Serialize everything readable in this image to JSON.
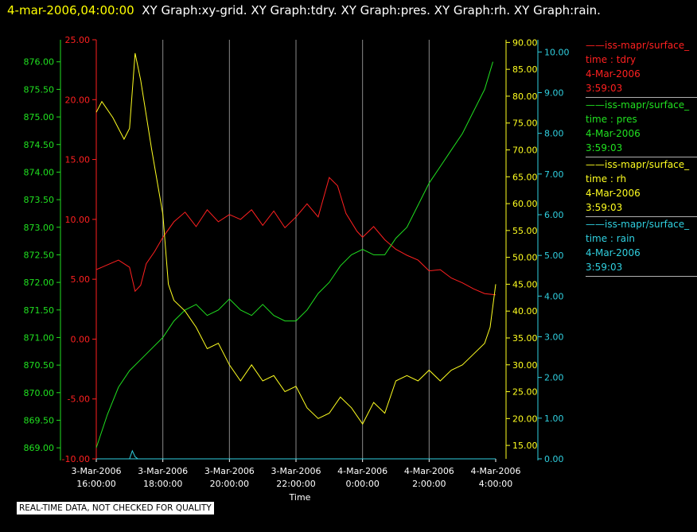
{
  "header": {
    "timestamp": "4-mar-2006,04:00:00",
    "graphs": "XY Graph:xy-grid.  XY Graph:tdry.  XY Graph:pres.  XY Graph:rh.  XY Graph:rain."
  },
  "legend": [
    {
      "series": "iss-mapr/surface_",
      "field": "time : tdry",
      "date": "4-Mar-2006",
      "time": "3:59:03",
      "color": "#ff2020"
    },
    {
      "series": "iss-mapr/surface_",
      "field": "time : pres",
      "date": "4-Mar-2006",
      "time": "3:59:03",
      "color": "#20e020"
    },
    {
      "series": "iss-mapr/surface_",
      "field": "time : rh",
      "date": "4-Mar-2006",
      "time": "3:59:03",
      "color": "#ffff20"
    },
    {
      "series": "iss-mapr/surface_",
      "field": "time : rain",
      "date": "4-Mar-2006",
      "time": "3:59:03",
      "color": "#30d0e0"
    }
  ],
  "footer": "REAL-TIME DATA, NOT CHECKED FOR QUALITY",
  "chart_data": {
    "type": "line",
    "xlabel": "Time",
    "x_ticks": [
      {
        "date": "3-Mar-2006",
        "time": "16:00:00"
      },
      {
        "date": "3-Mar-2006",
        "time": "18:00:00"
      },
      {
        "date": "3-Mar-2006",
        "time": "20:00:00"
      },
      {
        "date": "3-Mar-2006",
        "time": "22:00:00"
      },
      {
        "date": "4-Mar-2006",
        "time": "0:00:00"
      },
      {
        "date": "4-Mar-2006",
        "time": "2:00:00"
      },
      {
        "date": "4-Mar-2006",
        "time": "4:00:00"
      }
    ],
    "xlim": [
      "3-Mar-2006 16:00:00",
      "4-Mar-2006 4:00:00"
    ],
    "grid": "vertical",
    "axes": [
      {
        "id": "pres",
        "side": "left",
        "color": "#20e020",
        "ylim": [
          868.8,
          876.4
        ],
        "ticks": [
          "869.00",
          "869.50",
          "870.00",
          "870.50",
          "871.00",
          "871.50",
          "872.00",
          "872.50",
          "873.00",
          "873.50",
          "874.00",
          "874.50",
          "875.00",
          "875.50",
          "876.00"
        ]
      },
      {
        "id": "tdry",
        "side": "left",
        "color": "#ff2020",
        "ylim": [
          -10,
          25
        ],
        "ticks": [
          "-10.00",
          "-5.00",
          "0.00",
          "5.00",
          "10.00",
          "15.00",
          "20.00",
          "25.00"
        ]
      },
      {
        "id": "rh",
        "side": "right",
        "color": "#ffff20",
        "ylim": [
          12.5,
          90.5
        ],
        "ticks": [
          "15.00",
          "20.00",
          "25.00",
          "30.00",
          "35.00",
          "40.00",
          "45.00",
          "50.00",
          "55.00",
          "60.00",
          "65.00",
          "70.00",
          "75.00",
          "80.00",
          "85.00",
          "90.00"
        ]
      },
      {
        "id": "rain",
        "side": "right",
        "color": "#30d0e0",
        "ylim": [
          0,
          10.3
        ],
        "ticks": [
          "0.00",
          "1.00",
          "2.00",
          "3.00",
          "4.00",
          "5.00",
          "6.00",
          "7.00",
          "8.00",
          "9.00",
          "10.00"
        ]
      }
    ],
    "series": [
      {
        "name": "time : tdry",
        "axis": "tdry",
        "color": "#ff2020",
        "x": [
          "3-Mar-2006 16:00",
          "3-Mar-2006 16:20",
          "3-Mar-2006 16:40",
          "3-Mar-2006 17:00",
          "3-Mar-2006 17:10",
          "3-Mar-2006 17:20",
          "3-Mar-2006 17:30",
          "3-Mar-2006 17:45",
          "3-Mar-2006 18:00",
          "3-Mar-2006 18:20",
          "3-Mar-2006 18:40",
          "3-Mar-2006 19:00",
          "3-Mar-2006 19:20",
          "3-Mar-2006 19:40",
          "3-Mar-2006 20:00",
          "3-Mar-2006 20:20",
          "3-Mar-2006 20:40",
          "3-Mar-2006 21:00",
          "3-Mar-2006 21:20",
          "3-Mar-2006 21:40",
          "3-Mar-2006 22:00",
          "3-Mar-2006 22:20",
          "3-Mar-2006 22:40",
          "3-Mar-2006 23:00",
          "3-Mar-2006 23:15",
          "3-Mar-2006 23:30",
          "3-Mar-2006 23:50",
          "4-Mar-2006 0:00",
          "4-Mar-2006 0:20",
          "4-Mar-2006 0:40",
          "4-Mar-2006 1:00",
          "4-Mar-2006 1:20",
          "4-Mar-2006 1:40",
          "4-Mar-2006 2:00",
          "4-Mar-2006 2:20",
          "4-Mar-2006 2:40",
          "4-Mar-2006 3:00",
          "4-Mar-2006 3:20",
          "4-Mar-2006 3:40",
          "4-Mar-2006 4:00"
        ],
        "values": [
          5.8,
          6.2,
          6.6,
          6.0,
          4.0,
          4.5,
          6.3,
          7.3,
          8.5,
          9.8,
          10.6,
          9.4,
          10.8,
          9.8,
          10.4,
          10.0,
          10.8,
          9.5,
          10.7,
          9.3,
          10.2,
          11.3,
          10.2,
          13.5,
          12.8,
          10.5,
          9.0,
          8.5,
          9.4,
          8.3,
          7.5,
          7.0,
          6.6,
          5.7,
          5.8,
          5.1,
          4.7,
          4.2,
          3.8,
          3.7
        ]
      },
      {
        "name": "time : pres",
        "axis": "pres",
        "color": "#20e020",
        "x": [
          "3-Mar-2006 16:00",
          "3-Mar-2006 16:20",
          "3-Mar-2006 16:40",
          "3-Mar-2006 17:00",
          "3-Mar-2006 17:20",
          "3-Mar-2006 17:40",
          "3-Mar-2006 18:00",
          "3-Mar-2006 18:20",
          "3-Mar-2006 18:40",
          "3-Mar-2006 19:00",
          "3-Mar-2006 19:20",
          "3-Mar-2006 19:40",
          "3-Mar-2006 20:00",
          "3-Mar-2006 20:20",
          "3-Mar-2006 20:40",
          "3-Mar-2006 21:00",
          "3-Mar-2006 21:20",
          "3-Mar-2006 21:40",
          "3-Mar-2006 22:00",
          "3-Mar-2006 22:20",
          "3-Mar-2006 22:40",
          "3-Mar-2006 23:00",
          "3-Mar-2006 23:20",
          "3-Mar-2006 23:40",
          "4-Mar-2006 0:00",
          "4-Mar-2006 0:20",
          "4-Mar-2006 0:40",
          "4-Mar-2006 1:00",
          "4-Mar-2006 1:20",
          "4-Mar-2006 1:40",
          "4-Mar-2006 2:00",
          "4-Mar-2006 2:20",
          "4-Mar-2006 2:40",
          "4-Mar-2006 3:00",
          "4-Mar-2006 3:20",
          "4-Mar-2006 3:40",
          "4-Mar-2006 3:55"
        ],
        "values": [
          869.0,
          869.6,
          870.1,
          870.4,
          870.6,
          870.8,
          871.0,
          871.3,
          871.5,
          871.6,
          871.4,
          871.5,
          871.7,
          871.5,
          871.4,
          871.6,
          871.4,
          871.3,
          871.3,
          871.5,
          871.8,
          872.0,
          872.3,
          872.5,
          872.6,
          872.5,
          872.5,
          872.8,
          873.0,
          873.4,
          873.8,
          874.1,
          874.4,
          874.7,
          875.1,
          875.5,
          876.0
        ]
      },
      {
        "name": "time : rh",
        "axis": "rh",
        "color": "#ffff20",
        "x": [
          "3-Mar-2006 16:00",
          "3-Mar-2006 16:10",
          "3-Mar-2006 16:30",
          "3-Mar-2006 16:50",
          "3-Mar-2006 17:00",
          "3-Mar-2006 17:10",
          "3-Mar-2006 17:20",
          "3-Mar-2006 17:40",
          "3-Mar-2006 18:00",
          "3-Mar-2006 18:10",
          "3-Mar-2006 18:20",
          "3-Mar-2006 18:40",
          "3-Mar-2006 19:00",
          "3-Mar-2006 19:20",
          "3-Mar-2006 19:40",
          "3-Mar-2006 20:00",
          "3-Mar-2006 20:20",
          "3-Mar-2006 20:40",
          "3-Mar-2006 21:00",
          "3-Mar-2006 21:20",
          "3-Mar-2006 21:40",
          "3-Mar-2006 22:00",
          "3-Mar-2006 22:20",
          "3-Mar-2006 22:40",
          "3-Mar-2006 23:00",
          "3-Mar-2006 23:20",
          "3-Mar-2006 23:40",
          "4-Mar-2006 0:00",
          "4-Mar-2006 0:20",
          "4-Mar-2006 0:40",
          "4-Mar-2006 1:00",
          "4-Mar-2006 1:20",
          "4-Mar-2006 1:40",
          "4-Mar-2006 2:00",
          "4-Mar-2006 2:20",
          "4-Mar-2006 2:40",
          "4-Mar-2006 3:00",
          "4-Mar-2006 3:20",
          "4-Mar-2006 3:40",
          "4-Mar-2006 3:50",
          "4-Mar-2006 4:00"
        ],
        "values": [
          77,
          79,
          76,
          72,
          74,
          88,
          83,
          70,
          58,
          45,
          42,
          40,
          37,
          33,
          34,
          30,
          27,
          30,
          27,
          28,
          25,
          26,
          22,
          20,
          21,
          24,
          22,
          19,
          23,
          21,
          27,
          28,
          27,
          29,
          27,
          29,
          30,
          32,
          34,
          37,
          45
        ]
      },
      {
        "name": "time : rain",
        "axis": "rain",
        "color": "#30d0e0",
        "x": [
          "3-Mar-2006 16:00",
          "3-Mar-2006 17:00",
          "3-Mar-2006 17:05",
          "3-Mar-2006 17:10",
          "3-Mar-2006 17:15",
          "4-Mar-2006 4:00"
        ],
        "values": [
          0.0,
          0.0,
          0.2,
          0.05,
          0.0,
          0.0
        ]
      }
    ]
  }
}
